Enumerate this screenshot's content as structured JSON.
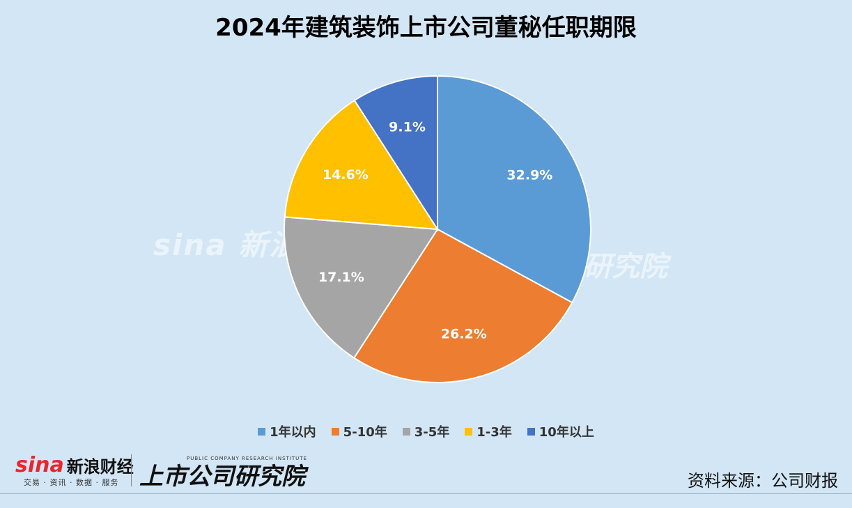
{
  "title": "2024年建筑装饰上市公司董秘任职期限",
  "source": "资料来源：公司财报",
  "brand": {
    "sina": "sina",
    "sina_cn": "新浪财经",
    "sina_sub": "交易 · 资讯 · 数据 · 服务",
    "institute": "上市公司研究院",
    "institute_en": "PUBLIC COMPANY RESEARCH INSTITUTE"
  },
  "watermark": {
    "left": "sina 新浪",
    "right": "研究院"
  },
  "chart_data": {
    "type": "pie",
    "title": "2024年建筑装饰上市公司董秘任职期限",
    "legend_position": "bottom",
    "slices": [
      {
        "label": "1年以内",
        "value": 32.9,
        "display": "32.9%",
        "color": "#5b9bd5"
      },
      {
        "label": "5-10年",
        "value": 26.2,
        "display": "26.2%",
        "color": "#ed7d31"
      },
      {
        "label": "3-5年",
        "value": 17.1,
        "display": "17.1%",
        "color": "#a5a5a5"
      },
      {
        "label": "1-3年",
        "value": 14.6,
        "display": "14.6%",
        "color": "#ffc000"
      },
      {
        "label": "10年以上",
        "value": 9.1,
        "display": "9.1%",
        "color": "#4472c4"
      }
    ]
  }
}
